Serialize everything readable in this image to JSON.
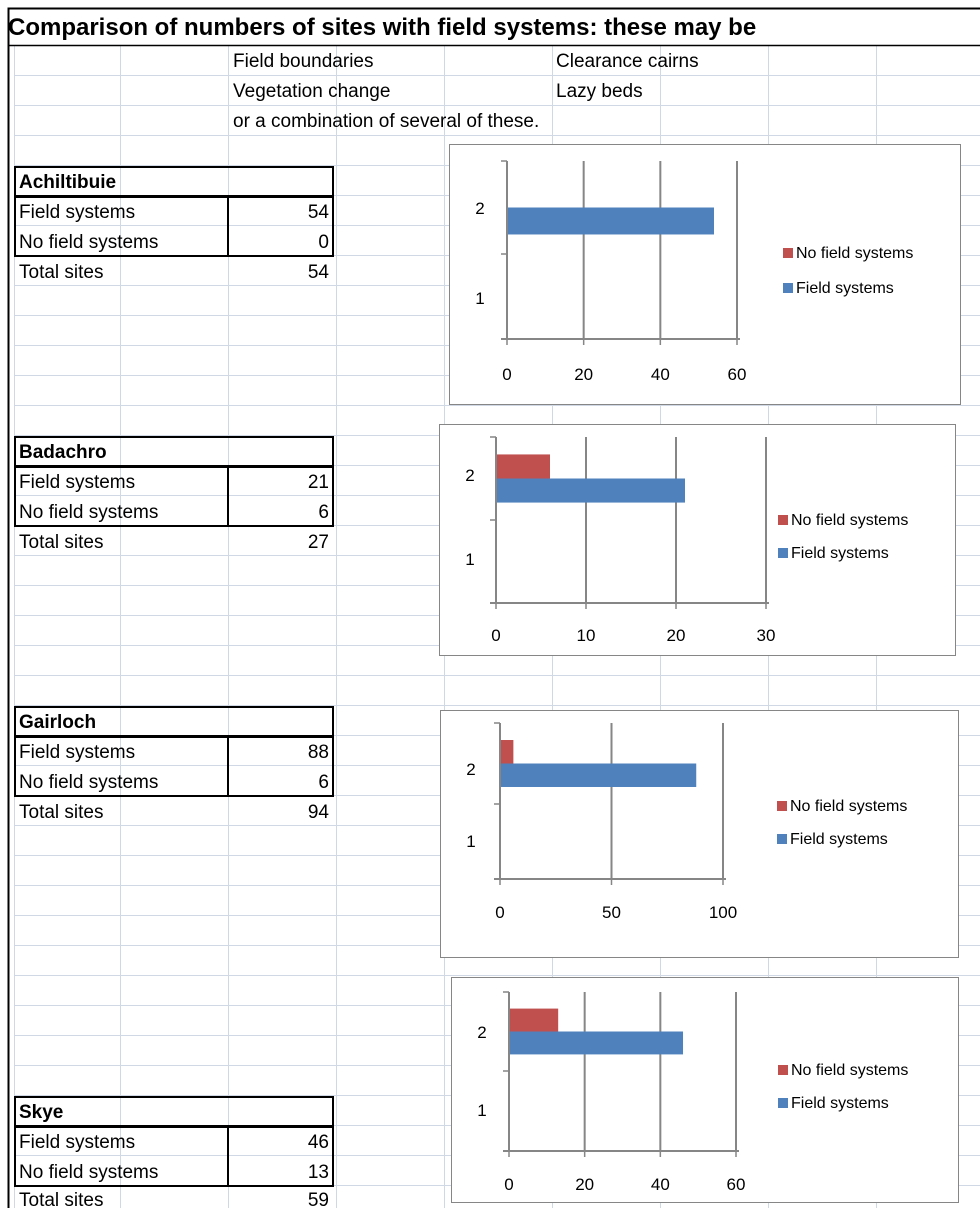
{
  "title": "Comparison of numbers of sites with field systems: these may be",
  "types": {
    "field_boundaries": "Field boundaries",
    "clearance_cairns": "Clearance cairns",
    "vegetation_change": "Vegetation change",
    "lazy_beds": "Lazy beds",
    "combination": "or a combination of several of these."
  },
  "colors": {
    "field_systems": "#4F81BD",
    "no_field_systems": "#C0504D"
  },
  "sites": [
    {
      "name": "Achiltibuie",
      "field_label": "Field systems",
      "field": "54",
      "nofield_label": "No field systems",
      "nofield": "0",
      "total_label": "Total sites",
      "total": "54"
    },
    {
      "name": "Badachro",
      "field_label": "Field systems",
      "field": "21",
      "nofield_label": "No field systems",
      "nofield": "6",
      "total_label": "Total sites",
      "total": "27"
    },
    {
      "name": "Gairloch",
      "field_label": "Field systems",
      "field": "88",
      "nofield_label": "No field systems",
      "nofield": "6",
      "total_label": "Total sites",
      "total": "94"
    },
    {
      "name": "Skye",
      "field_label": "Field systems",
      "field": "46",
      "nofield_label": "No field systems",
      "nofield": "13",
      "total_label": "Total sites",
      "total": "59"
    }
  ],
  "chart_data": [
    {
      "type": "bar",
      "orientation": "horizontal",
      "categories": [
        "1",
        "2"
      ],
      "series": [
        {
          "name": "No field systems",
          "values": [
            null,
            0
          ]
        },
        {
          "name": "Field systems",
          "values": [
            null,
            54
          ]
        }
      ],
      "xticks": [
        "0",
        "20",
        "40",
        "60"
      ],
      "xlim": [
        0,
        60
      ],
      "grid": true,
      "legend": "right"
    },
    {
      "type": "bar",
      "orientation": "horizontal",
      "categories": [
        "1",
        "2"
      ],
      "series": [
        {
          "name": "No field systems",
          "values": [
            null,
            6
          ]
        },
        {
          "name": "Field systems",
          "values": [
            null,
            21
          ]
        }
      ],
      "xticks": [
        "0",
        "10",
        "20",
        "30"
      ],
      "xlim": [
        0,
        30
      ],
      "grid": true,
      "legend": "right"
    },
    {
      "type": "bar",
      "orientation": "horizontal",
      "categories": [
        "1",
        "2"
      ],
      "series": [
        {
          "name": "No field systems",
          "values": [
            null,
            6
          ]
        },
        {
          "name": "Field systems",
          "values": [
            null,
            88
          ]
        }
      ],
      "xticks": [
        "0",
        "50",
        "100"
      ],
      "xlim": [
        0,
        100
      ],
      "grid": true,
      "legend": "right"
    },
    {
      "type": "bar",
      "orientation": "horizontal",
      "categories": [
        "1",
        "2"
      ],
      "series": [
        {
          "name": "No field systems",
          "values": [
            null,
            13
          ]
        },
        {
          "name": "Field systems",
          "values": [
            null,
            46
          ]
        }
      ],
      "xticks": [
        "0",
        "20",
        "40",
        "60"
      ],
      "xlim": [
        0,
        60
      ],
      "grid": true,
      "legend": "right"
    }
  ]
}
